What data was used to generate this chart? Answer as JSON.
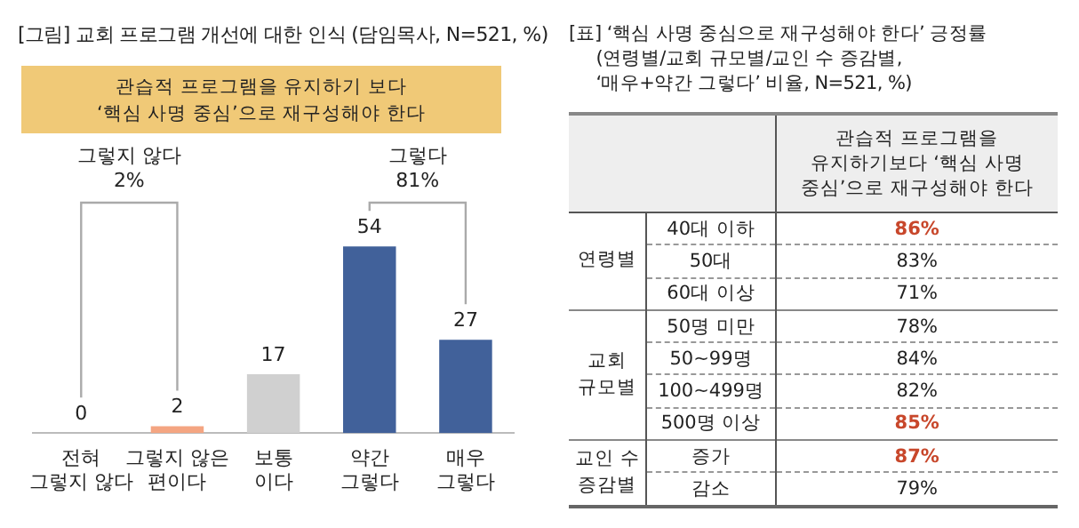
{
  "chart_data": [
    {
      "type": "bar",
      "title": "[그림] 교회 프로그램 개선에 대한 인식  (담임목사, N=521, %)",
      "subtitle": "관습적 프로그램을 유지하기 보다\n‘핵심 사명 중심’으로 재구성해야 한다",
      "categories": [
        "전혀\n그렇지 않다",
        "그렇지 않은\n편이다",
        "보통\n이다",
        "약간\n그렇다",
        "매우\n그렇다"
      ],
      "values": [
        0,
        2,
        17,
        54,
        27
      ],
      "colors": [
        "#f4a582",
        "#f4a582",
        "#d0d0d0",
        "#41619a",
        "#41619a"
      ],
      "data_labels": true,
      "grid": false,
      "legend": false,
      "annotations": [
        "그렇지 않다\n2%",
        "그렇다\n81%"
      ]
    },
    {
      "type": "other",
      "title": "[표] ‘핵심 사명 중심으로 재구성해야 한다’ 긍정률",
      "subtitle": "(연령별/교회 규모별/교인 수 증감별,\n‘매우+약간 그렇다’ 비율, N=521, %)",
      "categories": [
        "40대 이하",
        "50대",
        "60대 이상",
        "50명 미만",
        "50~99명",
        "100~499명",
        "500명 이상",
        "증가",
        "감소"
      ],
      "values": [
        86,
        83,
        71,
        78,
        84,
        82,
        85,
        87,
        79
      ],
      "value_labels": [
        "86%",
        "83%",
        "71%",
        "78%",
        "84%",
        "82%",
        "85%",
        "87%",
        "79%"
      ],
      "colors": [
        "#c8472b",
        "#222222",
        "#222222",
        "#222222",
        "#222222",
        "#222222",
        "#c8472b",
        "#c8472b",
        "#222222"
      ],
      "annotations": [
        "관습적 프로그램을\n유지하기보다 ‘핵심 사명\n중심’으로 재구성해야 한다",
        {
          "text": "연령별",
          "y": "40대 이하"
        },
        {
          "text": "교회\n규모별",
          "y": "50명 미만"
        },
        {
          "text": "교인 수\n증감별",
          "y": "증가"
        }
      ]
    }
  ]
}
